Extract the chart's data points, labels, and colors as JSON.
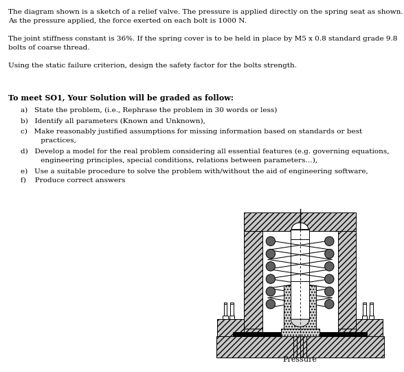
{
  "bg_color": "#ffffff",
  "text_color": "#000000",
  "para1_line1": "The diagram shown is a sketch of a relief valve. The pressure is applied directly on the spring seat as shown.",
  "para1_line2": "As the pressure applied, the force exerted on each bolt is 1000 N.",
  "para2_line1": "The joint stiffness constant is 36%. If the spring cover is to be held in place by M5 x 0.8 standard grade 9.8",
  "para2_line2": "bolts of coarse thread.",
  "para3": "Using the static failure criterion, design the safety factor for the bolts strength.",
  "bold_heading": "To meet SO1, Your Solution will be graded as follow:",
  "item_a": "a)   State the problem, (i.e., Rephrase the problem in 30 words or less)",
  "item_b": "b)   Identify all parameters (Known and Unknown),",
  "item_c1": "c)   Make reasonably justified assumptions for missing information based on standards or best",
  "item_c2": "         practices,",
  "item_d1": "d)   Develop a model for the real problem considering all essential features (e.g. governing equations,",
  "item_d2": "         engineering principles, special conditions, relations between parameters…),",
  "item_e": "e)   Use a suitable procedure to solve the problem with/without the aid of engineering software,",
  "item_f": "f)    Produce correct answers",
  "pressure_label": "Pressure",
  "font_size": 7.5,
  "bold_font_size": 8.0
}
